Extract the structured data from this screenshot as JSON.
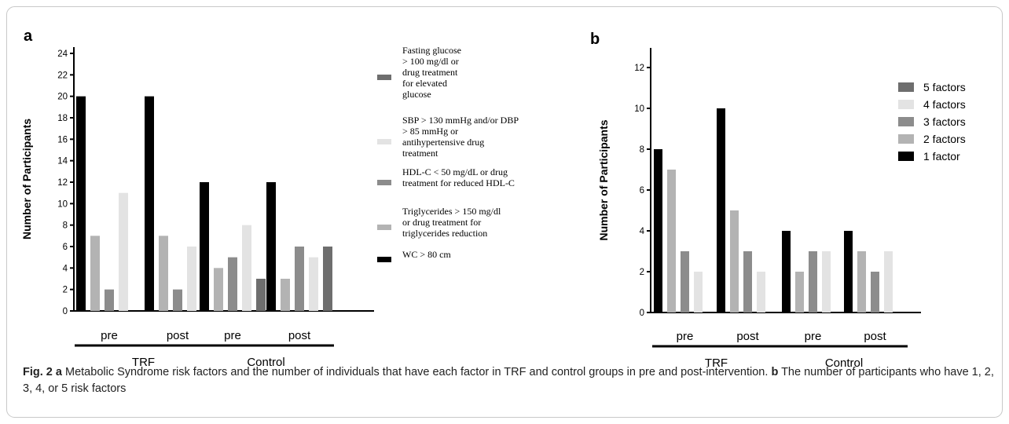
{
  "colors": {
    "wc": "#000000",
    "tg": "#b3b3b3",
    "hdl": "#8c8c8c",
    "sbp": "#e3e3e3",
    "glu": "#6e6e6e",
    "frame": "#c8c8c8"
  },
  "chart_data": [
    {
      "type": "bar",
      "panel_label": "a",
      "ylabel": "Number of Participants",
      "ylim": [
        0,
        24
      ],
      "yticks": [
        0,
        2,
        4,
        6,
        8,
        10,
        12,
        14,
        16,
        18,
        20,
        22,
        24
      ],
      "categories": [
        "pre",
        "post",
        "pre",
        "post"
      ],
      "groups": [
        "TRF",
        "Control"
      ],
      "series": [
        {
          "key": "wc",
          "name": "WC > 80 cm",
          "color": "#000000",
          "values": [
            20,
            20,
            12,
            12
          ]
        },
        {
          "key": "tg",
          "name": "Triglycerides > 150 mg/dl or drug treatment for triglycerides reduction",
          "color": "#b3b3b3",
          "values": [
            7,
            7,
            4,
            3
          ]
        },
        {
          "key": "hdl",
          "name": "HDL-C < 50 mg/dL or drug treatment for reduced HDL-C",
          "color": "#8c8c8c",
          "values": [
            2,
            2,
            5,
            6
          ]
        },
        {
          "key": "sbp",
          "name": "SBP > 130 mmHg and/or DBP > 85 mmHg or antihypertensive drug treatment",
          "color": "#e3e3e3",
          "values": [
            11,
            6,
            8,
            5
          ]
        },
        {
          "key": "glu",
          "name": "Fasting glucose > 100 mg/dl or drug treatment for elevated glucose",
          "color": "#6e6e6e",
          "values": [
            0,
            0,
            3,
            6
          ]
        }
      ],
      "legend_lines": {
        "glu": [
          "Fasting glucose",
          "> 100 mg/dl or",
          "drug treatment",
          "for elevated",
          "glucose"
        ],
        "sbp": [
          "SBP > 130 mmHg and/or DBP",
          "> 85 mmHg or",
          "antihypertensive drug",
          "treatment"
        ],
        "hdl": [
          "HDL-C < 50 mg/dL or drug",
          "treatment for reduced HDL-C"
        ],
        "tg": [
          "Triglycerides > 150 mg/dl",
          "or drug treatment for",
          "triglycerides reduction"
        ],
        "wc": [
          "WC > 80 cm"
        ]
      },
      "legend_order": [
        "glu",
        "sbp",
        "hdl",
        "tg",
        "wc"
      ],
      "legend_placement": "right"
    },
    {
      "type": "bar",
      "panel_label": "b",
      "ylabel": "Number of Participants",
      "ylim": [
        0,
        12
      ],
      "yticks": [
        0,
        2,
        4,
        6,
        8,
        10,
        12
      ],
      "categories": [
        "pre",
        "post",
        "pre",
        "post"
      ],
      "groups": [
        "TRF",
        "Control"
      ],
      "series": [
        {
          "key": "f1",
          "name": "1 factor",
          "color": "#000000",
          "values": [
            8,
            10,
            4,
            4
          ]
        },
        {
          "key": "f2",
          "name": "2 factors",
          "color": "#b3b3b3",
          "values": [
            7,
            5,
            2,
            3
          ]
        },
        {
          "key": "f3",
          "name": "3 factors",
          "color": "#8c8c8c",
          "values": [
            3,
            3,
            3,
            2
          ]
        },
        {
          "key": "f4",
          "name": "4 factors",
          "color": "#e3e3e3",
          "values": [
            2,
            2,
            3,
            3
          ]
        },
        {
          "key": "f5",
          "name": "5 factors",
          "color": "#6e6e6e",
          "values": [
            0,
            0,
            0,
            0
          ]
        }
      ],
      "legend_order": [
        "f5",
        "f4",
        "f3",
        "f2",
        "f1"
      ],
      "legend_placement": "right"
    }
  ],
  "caption": {
    "fig_label": "Fig. 2",
    "label_a": "a",
    "text_a": "Metabolic Syndrome risk factors and the number of individuals that have each factor in TRF and control groups in pre and post-intervention.",
    "label_b": "b",
    "text_b": "The number of participants who have 1, 2, 3, 4, or 5 risk factors"
  }
}
